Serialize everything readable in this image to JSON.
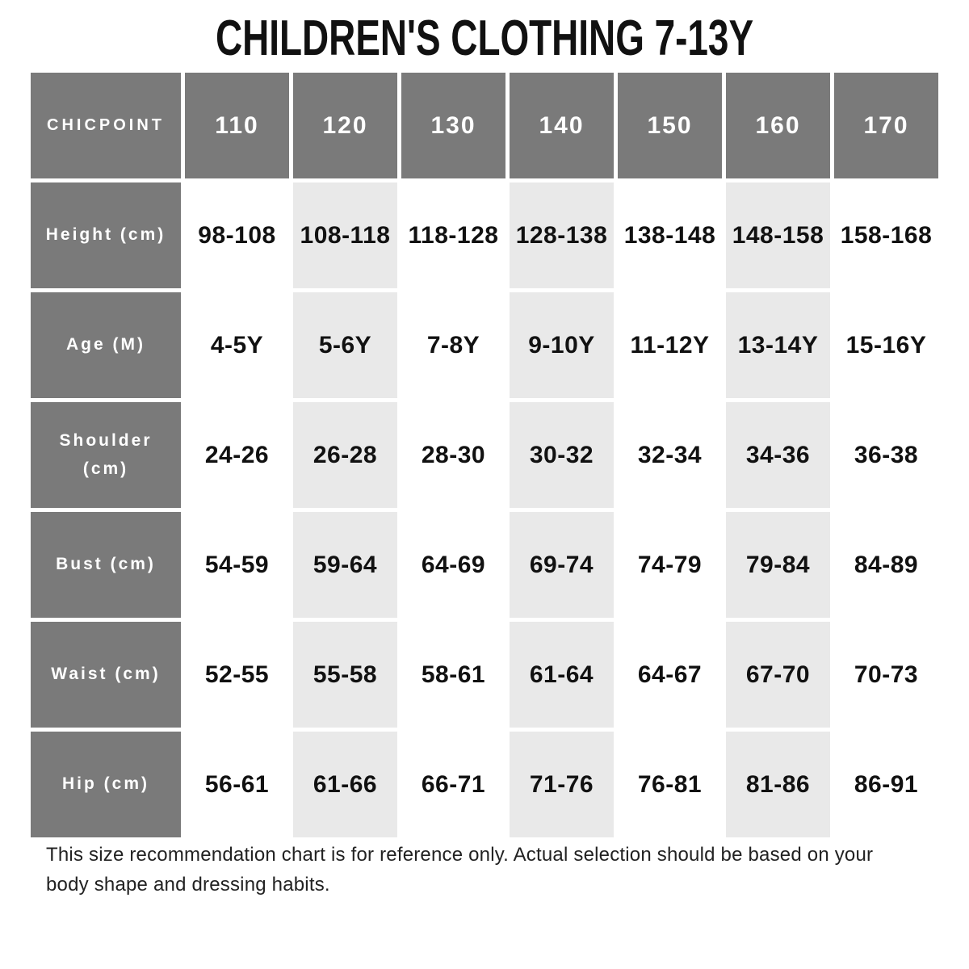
{
  "chart_data": {
    "type": "table",
    "title": "CHILDREN'S CLOTHING 7-13Y",
    "brand": "CHICPOINT",
    "size_columns": [
      "110",
      "120",
      "130",
      "140",
      "150",
      "160",
      "170"
    ],
    "rows": [
      {
        "label": "Height (cm)",
        "values": [
          "98-108",
          "108-118",
          "118-128",
          "128-138",
          "138-148",
          "148-158",
          "158-168"
        ]
      },
      {
        "label": "Age (M)",
        "values": [
          "4-5Y",
          "5-6Y",
          "7-8Y",
          "9-10Y",
          "11-12Y",
          "13-14Y",
          "15-16Y"
        ]
      },
      {
        "label": "Shoulder (cm)",
        "values": [
          "24-26",
          "26-28",
          "28-30",
          "30-32",
          "32-34",
          "34-36",
          "36-38"
        ]
      },
      {
        "label": "Bust (cm)",
        "values": [
          "54-59",
          "59-64",
          "64-69",
          "69-74",
          "74-79",
          "79-84",
          "84-89"
        ]
      },
      {
        "label": "Waist (cm)",
        "values": [
          "52-55",
          "55-58",
          "58-61",
          "61-64",
          "64-67",
          "67-70",
          "70-73"
        ]
      },
      {
        "label": "Hip (cm)",
        "values": [
          "56-61",
          "61-66",
          "66-71",
          "71-76",
          "76-81",
          "81-86",
          "86-91"
        ]
      }
    ],
    "highlighted_columns": [
      "120",
      "140",
      "160"
    ],
    "layout_hints": {
      "header_row": true,
      "label_column": true,
      "grid": "cell-gaps-white"
    }
  },
  "footer": {
    "lines": [
      "This size recommendation chart is for reference only. Actual selection should be based on your",
      "body shape and dressing habits."
    ]
  },
  "colors": {
    "header_bg": "#7a7a7a",
    "alt_col_bg": "#e9e9e9",
    "cell_bg": "#ffffff",
    "header_text": "#ffffff",
    "value_text": "#111111",
    "title_text": "#111111"
  }
}
